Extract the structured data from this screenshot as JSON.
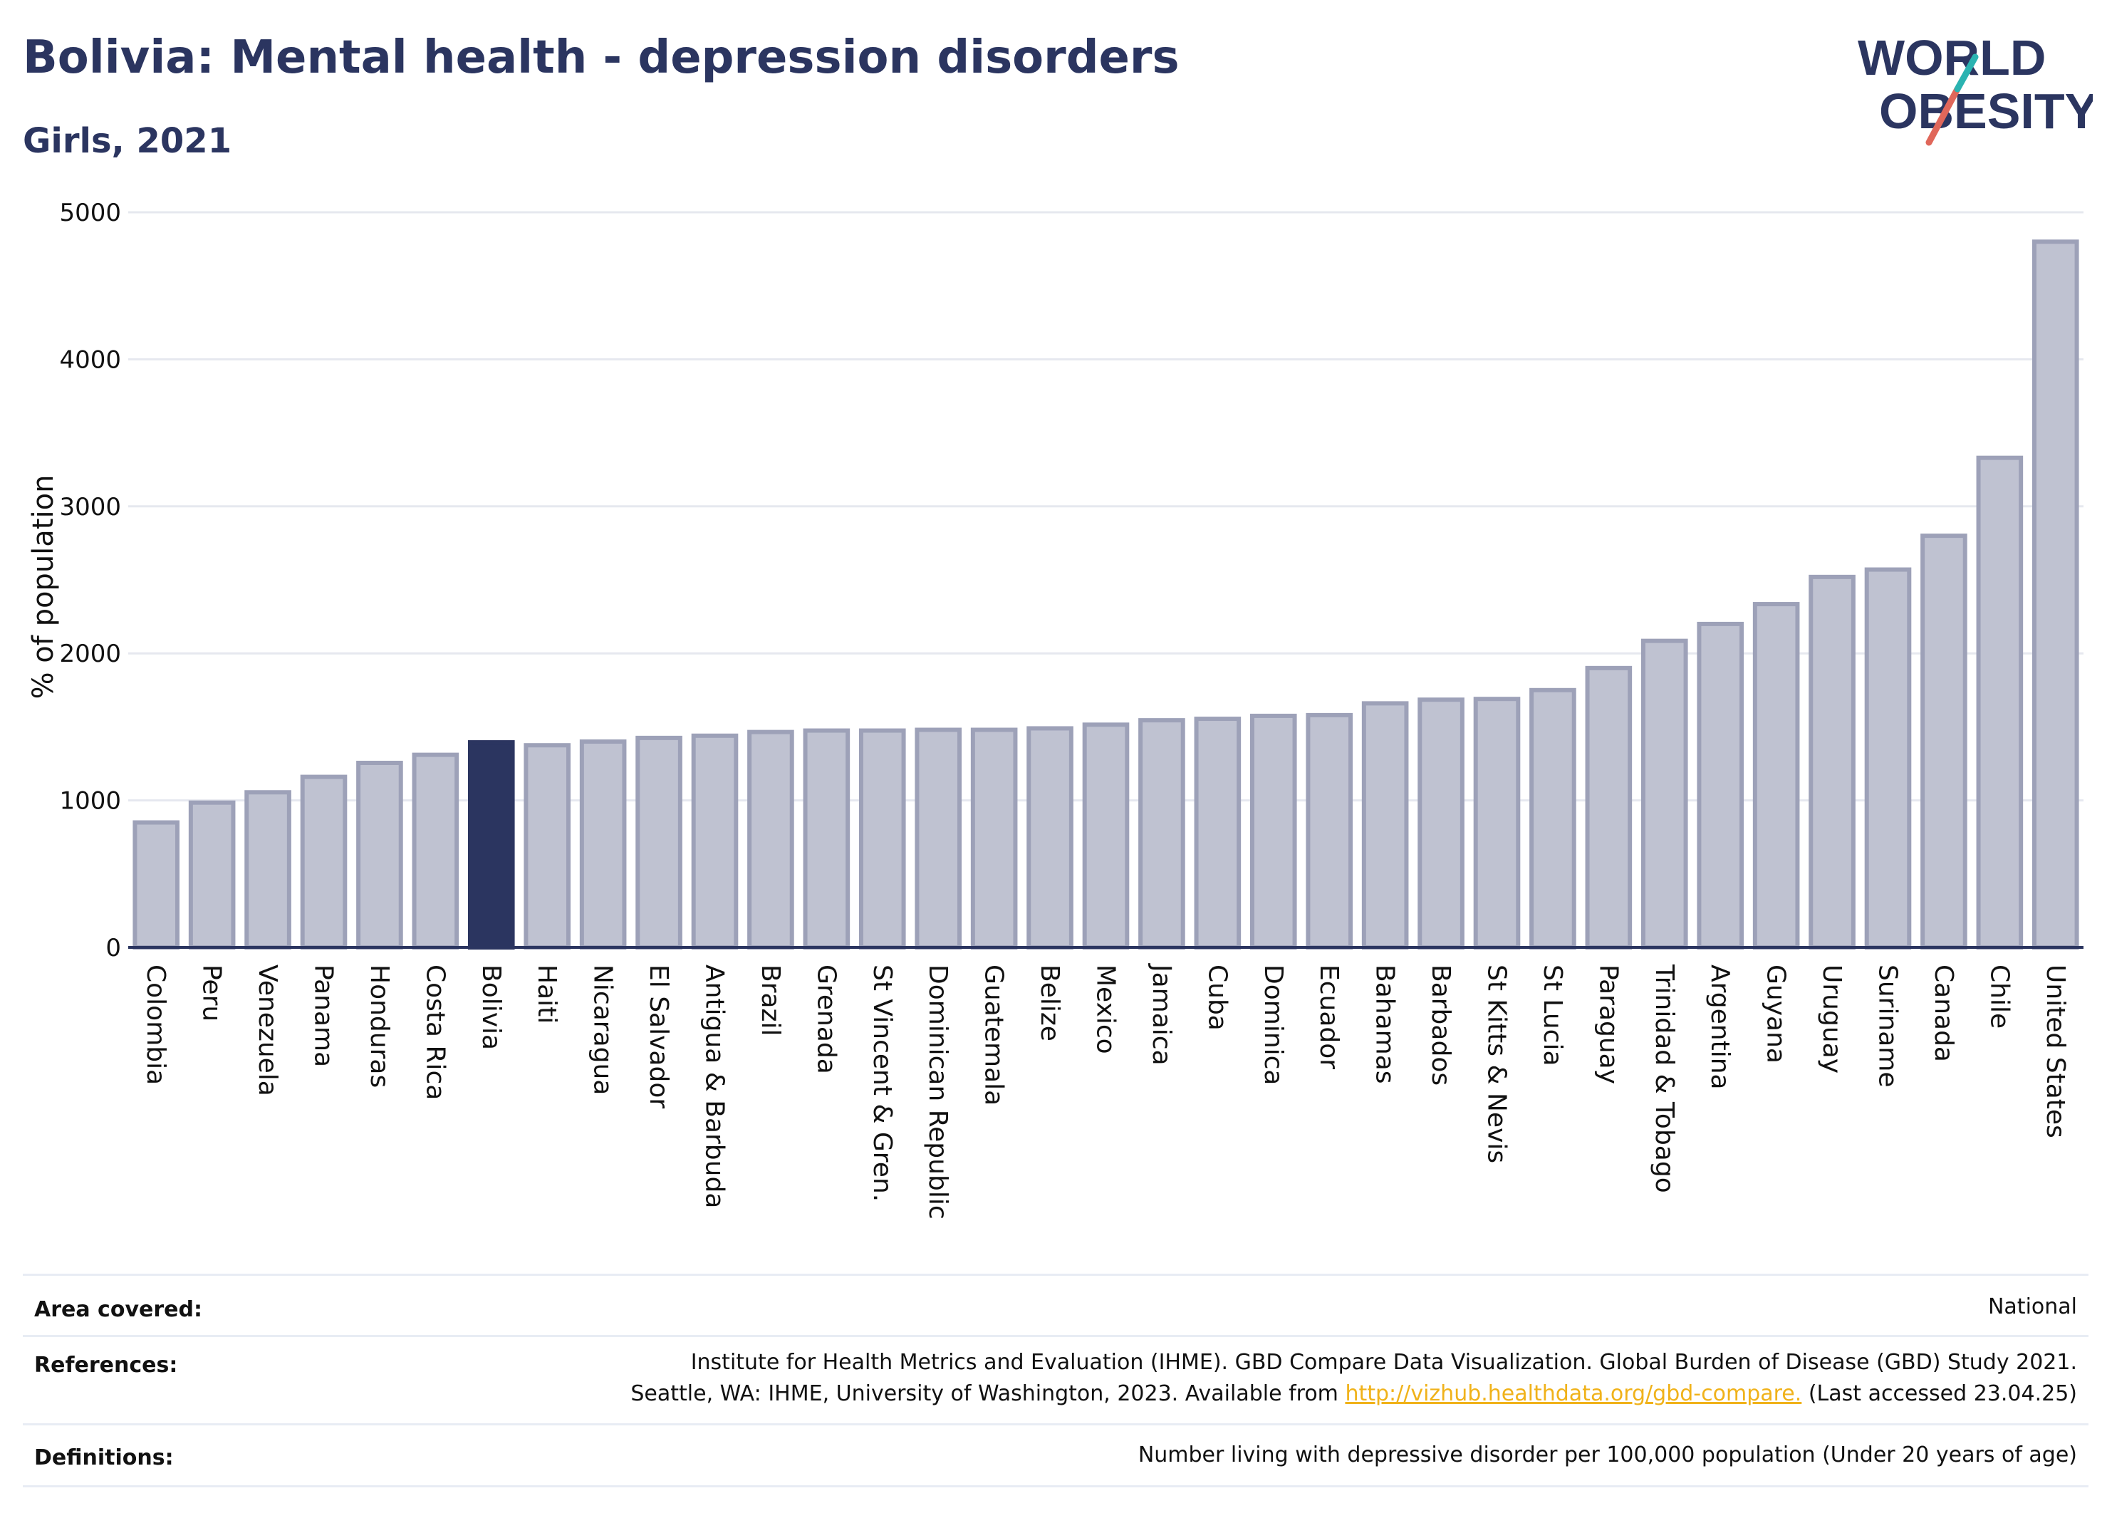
{
  "header": {
    "title": "Bolivia: Mental health - depression disorders",
    "subtitle": "Girls, 2021"
  },
  "logo": {
    "line1": "WORLD",
    "line2": "OBESITY",
    "colors": {
      "text": "#2b3560",
      "slash_teal": "#2bb3b1",
      "slash_red": "#e0675a"
    }
  },
  "chart_data": {
    "type": "bar",
    "ylabel": "% of population",
    "ylim": [
      0,
      5000
    ],
    "yticks": [
      0,
      1000,
      2000,
      3000,
      4000,
      5000
    ],
    "grid": true,
    "highlight": "Bolivia",
    "colors": {
      "bar": "#bfc2d1",
      "bar_edge": "#9da1b8",
      "highlight": "#2b3560"
    },
    "categories": [
      "Colombia",
      "Peru",
      "Venezuela",
      "Panama",
      "Honduras",
      "Costa Rica",
      "Bolivia",
      "Haiti",
      "Nicaragua",
      "El Salvador",
      "Antigua & Barbuda",
      "Brazil",
      "Grenada",
      "St Vincent & Gren.",
      "Dominican Republic",
      "Guatemala",
      "Belize",
      "Mexico",
      "Jamaica",
      "Cuba",
      "Dominica",
      "Ecuador",
      "Bahamas",
      "Barbados",
      "St Kitts & Nevis",
      "St Lucia",
      "Paraguay",
      "Trinidad & Tobago",
      "Argentina",
      "Guyana",
      "Uruguay",
      "Suriname",
      "Canada",
      "Chile",
      "United States"
    ],
    "values": [
      850,
      985,
      1055,
      1160,
      1255,
      1310,
      1395,
      1375,
      1400,
      1425,
      1440,
      1465,
      1475,
      1475,
      1480,
      1480,
      1490,
      1515,
      1545,
      1555,
      1575,
      1580,
      1660,
      1685,
      1690,
      1750,
      1900,
      2085,
      2200,
      2335,
      2520,
      2570,
      2800,
      3330,
      4800
    ]
  },
  "footer": {
    "area_label": "Area covered:",
    "area_value": "National",
    "references_label": "References:",
    "references_line1": "Institute for Health Metrics and Evaluation (IHME). GBD Compare Data Visualization. Global Burden of Disease (GBD) Study 2021.",
    "references_line2_pre": "Seattle, WA: IHME, University of Washington, 2023. Available from ",
    "references_link": "http://vizhub.healthdata.org/gbd-compare.",
    "references_line2_post": " (Last accessed 23.04.25)",
    "definitions_label": "Definitions:",
    "definitions_value": "Number living with depressive disorder per 100,000 population (Under 20 years of age)"
  }
}
